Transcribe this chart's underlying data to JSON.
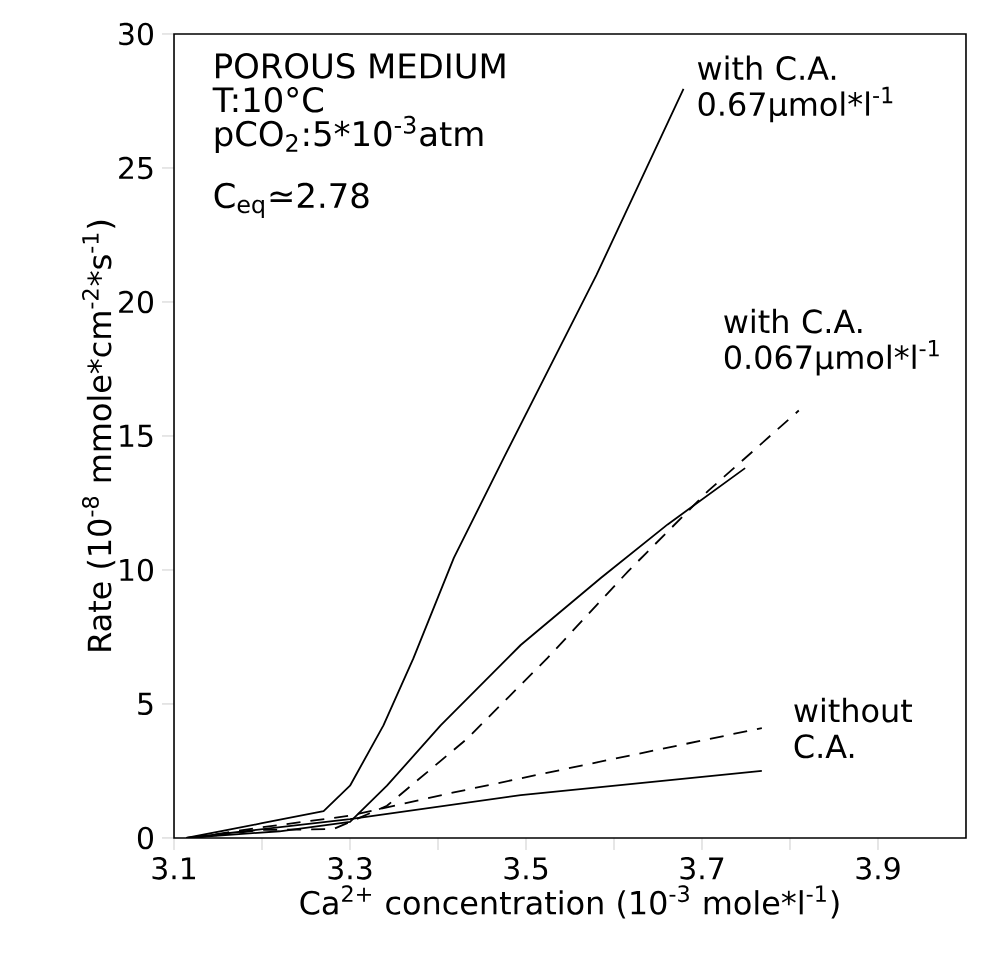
{
  "chart_data": {
    "type": "line",
    "xlabel": "Ca$^{2+}$ concentration (10$^{-3}$ mole*l$^{-1}$)",
    "ylabel": "Rate (10$^{-8}$ mmole*cm$^{-2}$*s$^{-1}$)",
    "xlim": [
      3.1,
      4.0
    ],
    "ylim": [
      0,
      30
    ],
    "xticks": [
      3.1,
      {
        "value": 3.2,
        "label": null
      },
      3.3,
      {
        "value": 3.4,
        "label": null
      },
      3.5,
      {
        "value": 3.6,
        "label": null
      },
      3.7,
      {
        "value": 3.8,
        "label": null
      },
      3.9
    ],
    "yticks": [
      0,
      5,
      10,
      15,
      20,
      25,
      30
    ],
    "annotations": [
      "POROUS MEDIUM",
      "T:10°C",
      "pCO$_{2}$:5*10$^{-3}$atm",
      "C$_{eq}$≃2.78",
      {
        "text": "with C.A. 0.67μmol*l$^{-1}$",
        "x": 3.679,
        "y": 27.95
      },
      {
        "text": "with C.A. 0.067μmol*l$^{-1}$",
        "x": 3.81,
        "y": 15.95
      },
      {
        "text": "without C.A.",
        "x": 3.768,
        "y": 4.1
      }
    ],
    "series": [
      {
        "color": "#000000",
        "line_style": "solid",
        "x": [
          3.114,
          3.2,
          3.27,
          3.3,
          3.338,
          3.372,
          3.418,
          3.475,
          3.58,
          3.679
        ],
        "values": [
          0,
          0.55,
          1.0,
          1.95,
          4.2,
          6.7,
          10.45,
          14.2,
          21.0,
          27.95
        ]
      },
      {
        "color": "#000000",
        "line_style": "solid",
        "x": [
          3.114,
          3.22,
          3.3,
          3.342,
          3.403,
          3.494,
          3.585,
          3.661,
          3.749
        ],
        "values": [
          0,
          0.25,
          0.6,
          1.95,
          4.2,
          7.2,
          9.7,
          11.7,
          13.8
        ]
      },
      {
        "color": "#000000",
        "line_style": "dashed",
        "x": [
          3.12,
          3.2,
          3.281,
          3.342,
          3.433,
          3.524,
          3.616,
          3.707,
          3.81
        ],
        "values": [
          0,
          0.3,
          0.33,
          1.2,
          3.7,
          6.7,
          9.95,
          12.95,
          15.95
        ]
      },
      {
        "color": "#000000",
        "line_style": "solid",
        "x": [
          3.114,
          3.3,
          3.494,
          3.768
        ],
        "values": [
          0,
          0.7,
          1.6,
          2.5
        ]
      },
      {
        "color": "#000000",
        "line_style": "dashed",
        "x": [
          3.12,
          3.2,
          3.3,
          3.418,
          3.57,
          3.768
        ],
        "values": [
          0,
          0.4,
          0.83,
          1.7,
          2.75,
          4.1
        ]
      }
    ]
  }
}
